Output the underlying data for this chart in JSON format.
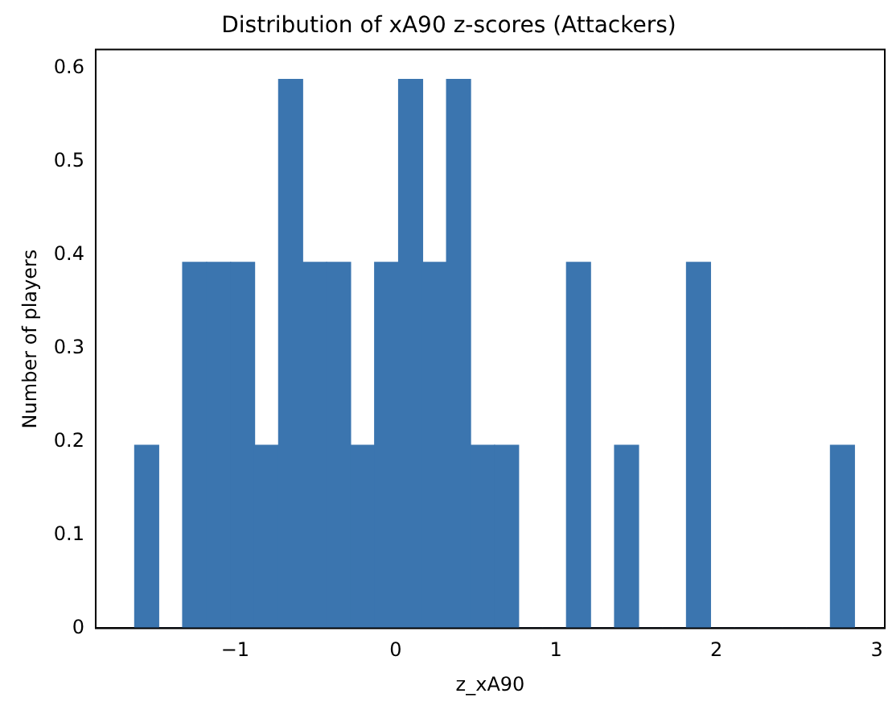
{
  "chart_data": {
    "type": "histogram",
    "title": "Distribution of xA90 z-scores (Attackers)",
    "xlabel": "z_xA90",
    "ylabel": "Number of players",
    "bins": [
      -1.627,
      -1.477,
      -1.328,
      -1.178,
      -1.029,
      -0.879,
      -0.729,
      -0.58,
      -0.43,
      -0.281,
      -0.131,
      0.019,
      0.168,
      0.318,
      0.467,
      0.617,
      0.767,
      0.916,
      1.066,
      1.215,
      1.365,
      1.515,
      1.664,
      1.814,
      1.963,
      2.113,
      2.263,
      2.412,
      2.562,
      2.711,
      2.861
    ],
    "values": [
      0.196,
      0,
      0.392,
      0.392,
      0.392,
      0.196,
      0.588,
      0.392,
      0.392,
      0.196,
      0.392,
      0.588,
      0.392,
      0.588,
      0.196,
      0.196,
      0,
      0,
      0.392,
      0,
      0.196,
      0,
      0,
      0.392,
      0,
      0,
      0,
      0,
      0,
      0.196
    ],
    "color": "#3b75af",
    "xlim": [
      -1.87,
      3.05
    ],
    "xticks": [
      {
        "value": -1,
        "label": "−1"
      },
      0,
      1,
      2,
      3
    ],
    "ylim": [
      0,
      0.62
    ],
    "yticks": [
      0,
      0.1,
      0.2,
      0.3,
      0.4,
      0.5,
      0.6
    ],
    "grid": false,
    "legend": false
  }
}
